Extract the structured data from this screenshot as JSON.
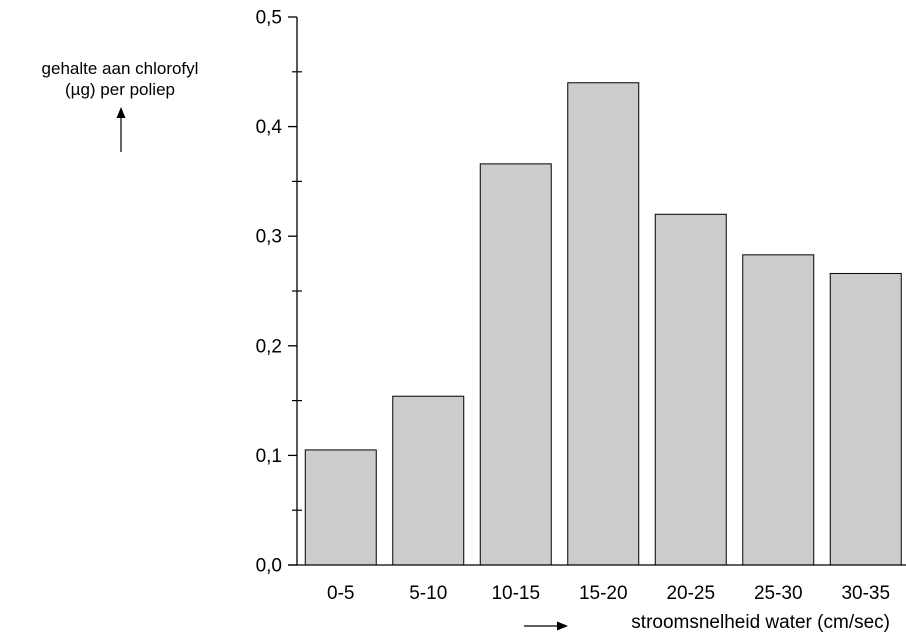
{
  "chart_data": {
    "type": "bar",
    "ylabel_lines": [
      "gehalte aan chlorofyl",
      "(µg) per poliep"
    ],
    "xlabel": "stroomsnelheid water (cm/sec)",
    "categories": [
      "0-5",
      "5-10",
      "10-15",
      "15-20",
      "20-25",
      "25-30",
      "30-35"
    ],
    "values": [
      0.105,
      0.154,
      0.366,
      0.44,
      0.32,
      0.283,
      0.266
    ],
    "ylim": [
      0,
      0.5
    ],
    "yticks": [
      "0,0",
      "0,1",
      "0,2",
      "0,3",
      "0,4",
      "0,5"
    ],
    "ytick_values": [
      0,
      0.1,
      0.2,
      0.3,
      0.4,
      0.5
    ],
    "minor_tick_step": 0.05,
    "bar_color": "#cccccc",
    "edge_color": "#000000",
    "grid": false
  }
}
